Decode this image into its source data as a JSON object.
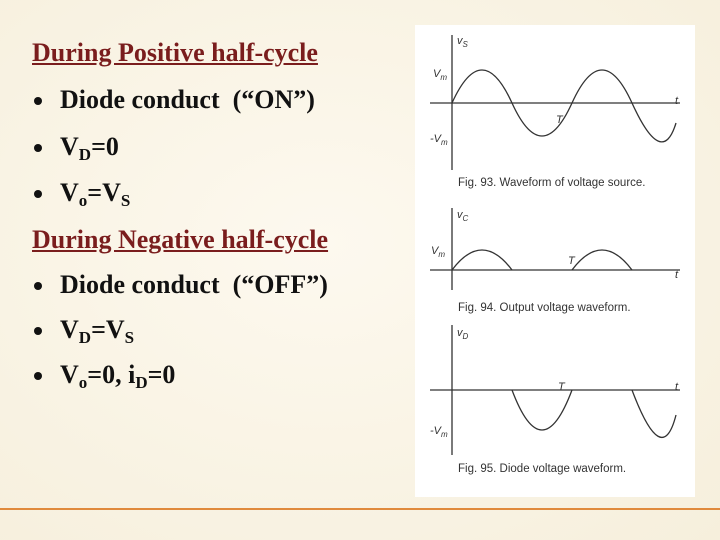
{
  "slide": {
    "lines": [
      {
        "kind": "heading",
        "segments": [
          {
            "text": "During Positive half-cycle"
          }
        ]
      },
      {
        "kind": "bullet",
        "segments": [
          {
            "text": "Diode conduct  (“ON”)"
          }
        ]
      },
      {
        "kind": "bullet",
        "segments": [
          {
            "text": "V"
          },
          {
            "sub": "D"
          },
          {
            "text": "=0"
          }
        ]
      },
      {
        "kind": "bullet",
        "segments": [
          {
            "text": "V"
          },
          {
            "sub": "o"
          },
          {
            "text": "=V"
          },
          {
            "sub": "S"
          }
        ]
      },
      {
        "kind": "heading",
        "segments": [
          {
            "text": "During Negative half-cycle"
          }
        ]
      },
      {
        "kind": "bullet",
        "segments": [
          {
            "text": "Diode conduct  (“OFF”)"
          }
        ]
      },
      {
        "kind": "bullet",
        "segments": [
          {
            "text": "V"
          },
          {
            "sub": "D"
          },
          {
            "text": "=V"
          },
          {
            "sub": "S"
          }
        ]
      },
      {
        "kind": "bullet",
        "segments": [
          {
            "text": "V"
          },
          {
            "sub": "o"
          },
          {
            "text": "=0, i"
          },
          {
            "sub": "D"
          },
          {
            "text": "=0"
          }
        ]
      }
    ],
    "figures": [
      {
        "labels": [
          [
            {
              "text": "v"
            },
            {
              "sub": "S"
            }
          ],
          [
            {
              "text": "V"
            },
            {
              "sub": "m"
            }
          ],
          [
            {
              "text": "-V"
            },
            {
              "sub": "m"
            }
          ],
          [
            {
              "text": "t"
            }
          ],
          [
            {
              "text": "T"
            }
          ]
        ],
        "caption": "Fig. 93.  Waveform of voltage source."
      },
      {
        "labels": [
          [
            {
              "text": "v"
            },
            {
              "sub": "C"
            }
          ],
          [
            {
              "text": "V"
            },
            {
              "sub": "m"
            }
          ],
          [
            {
              "text": "t"
            }
          ],
          [
            {
              "text": "T"
            }
          ]
        ],
        "caption": "Fig. 94.  Output voltage waveform."
      },
      {
        "labels": [
          [
            {
              "text": "v"
            },
            {
              "sub": "D"
            }
          ],
          [
            {
              "text": "-V"
            },
            {
              "sub": "m"
            }
          ],
          [
            {
              "text": "t"
            }
          ],
          [
            {
              "text": "T"
            }
          ]
        ],
        "caption": "Fig. 95.  Diode voltage waveform."
      }
    ]
  }
}
